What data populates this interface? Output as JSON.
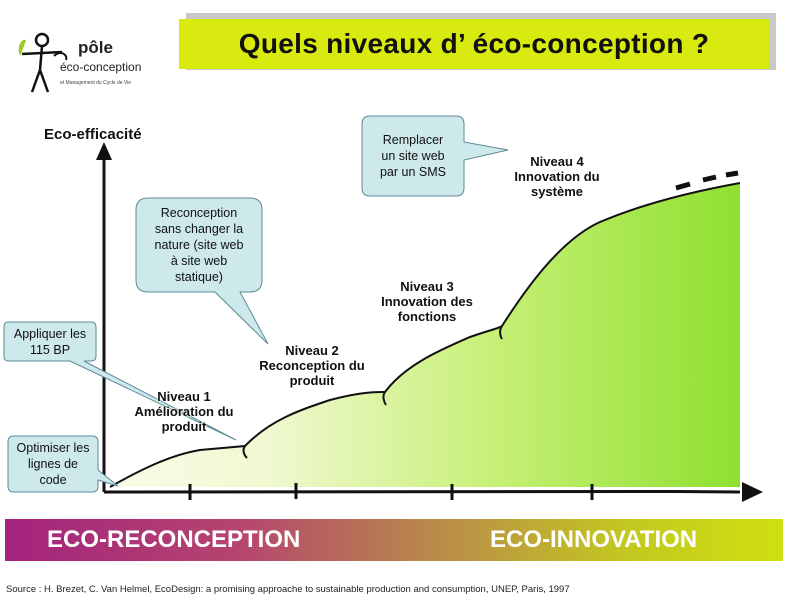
{
  "title": "Quels niveaux d’ éco-conception ?",
  "logo": {
    "name_line1": "pôle",
    "name_line2": "éco-conception",
    "subtitle": "et Management du Cycle de Vie"
  },
  "y_axis_label": "Eco-efficacité",
  "levels": [
    {
      "id": "level-1",
      "lines": [
        "Niveau 1",
        "Amélioration du",
        "produit"
      ]
    },
    {
      "id": "level-2",
      "lines": [
        "Niveau 2",
        "Reconception du",
        "produit"
      ]
    },
    {
      "id": "level-3",
      "lines": [
        "Niveau 3",
        "Innovation des",
        "fonctions"
      ]
    },
    {
      "id": "level-4",
      "lines": [
        "Niveau 4",
        "Innovation du",
        "système"
      ]
    }
  ],
  "callouts": [
    {
      "id": "optimise-lines",
      "lines": [
        "Optimiser les",
        "lignes de",
        "code"
      ]
    },
    {
      "id": "apply-bp",
      "lines": [
        "Appliquer les",
        "115 BP"
      ]
    },
    {
      "id": "redesign",
      "lines": [
        "Reconception",
        "sans changer la",
        "nature (site web",
        "à site web",
        "statique)"
      ]
    },
    {
      "id": "replace-site",
      "lines": [
        "Remplacer",
        "un site web",
        "par un SMS"
      ]
    }
  ],
  "bottom_band": {
    "left": "ECO-RECONCEPTION",
    "right": "ECO-INNOVATION"
  },
  "source": "Source : H. Brezet, C. Van Helmel, EcoDesign: a promising approache to sustainable production and consumption, UNEP, Paris, 1997",
  "colors": {
    "title_bar": "#d8ea10",
    "curve_fill_end": "#8fe030",
    "callout_fill": "#cde9ec",
    "band_left": "#a4237e",
    "band_right": "#cfe010"
  }
}
